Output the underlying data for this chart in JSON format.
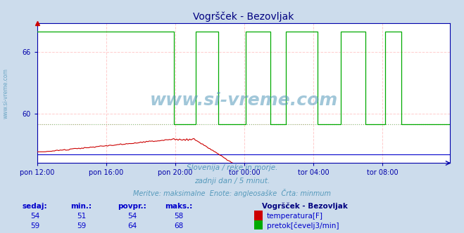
{
  "title": "Vogršček - Bezovljak",
  "title_color": "#000080",
  "bg_color": "#ccdcec",
  "plot_bg_color": "#ffffff",
  "grid_color": "#ffaaaa",
  "x_labels": [
    "pon 12:00",
    "pon 16:00",
    "pon 20:00",
    "tor 00:00",
    "tor 04:00",
    "tor 08:00"
  ],
  "x_ticks_idx": [
    0,
    48,
    96,
    144,
    192,
    240
  ],
  "n_points": 288,
  "y_ticks": [
    60,
    66
  ],
  "ylim": [
    55.2,
    68.8
  ],
  "temp_min_val": 59.0,
  "flow_min_val": 59.0,
  "temp_color": "#cc0000",
  "flow_color": "#00aa00",
  "height_color": "#0000cc",
  "axis_color": "#0000aa",
  "tick_color": "#0000aa",
  "grid_line_color": "#ffcccc",
  "min_line_color_red": "#ff8888",
  "min_line_color_green": "#88cc88",
  "watermark": "www.si-vreme.com",
  "watermark_color": "#5599bb",
  "subtitle1": "Slovenija / reke in morje.",
  "subtitle2": "zadnji dan / 5 minut.",
  "subtitle3": "Meritve: maksimalne  Enote: angleosaške  Črta: minmum",
  "subtitle_color": "#5599bb",
  "table_headers": [
    "sedaj:",
    "min.:",
    "povpr.:",
    "maks.:"
  ],
  "table_color": "#0000cc",
  "legend_title": "Vogršček - Bezovljak",
  "legend_title_color": "#000080",
  "temp_label": "temperatura[F]",
  "flow_label": "pretok[čevelj3/min]",
  "temp_sedaj": 54,
  "temp_min": 51,
  "temp_povpr": 54,
  "temp_maks": 58,
  "flow_sedaj": 59,
  "flow_min": 59,
  "flow_povpr": 64,
  "flow_maks": 68,
  "left_label": "www.si-vreme.com"
}
